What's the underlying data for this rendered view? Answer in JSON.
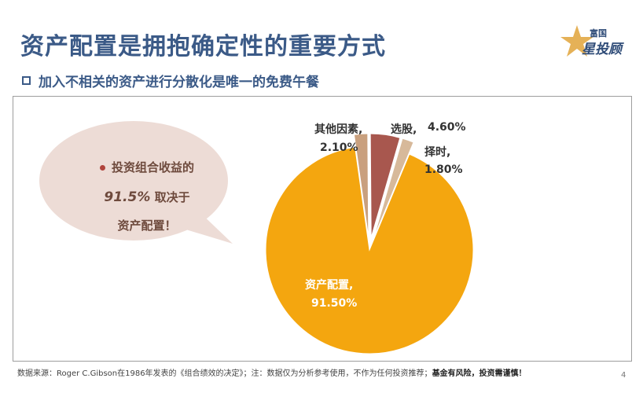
{
  "slide": {
    "title": "资产配置是拥抱确定性的重要方式",
    "subtitle": "加入不相关的资产进行分散化是唯一的免费午餐",
    "logo": {
      "top": "富国",
      "bottom": "星投顾"
    },
    "bubble": {
      "line1": "投资组合收益的",
      "number": "91.5%",
      "line2_rest": "取决于",
      "line3": "资产配置！"
    },
    "footnote": {
      "normal": "数据来源：Roger C.Gibson在1986年发表的《组合绩效的决定》；注：数据仅为分析参考使用，不作为任何投资推荐；",
      "bold": "基金有风险，投资需谨慎！"
    },
    "page_number": "4"
  },
  "chart_data": {
    "type": "pie",
    "title": "",
    "start_angle_deg": 0,
    "slices": [
      {
        "name": "其他因素,",
        "value": 2.1,
        "value_label": "2.10%",
        "color": "#c9a07e"
      },
      {
        "name": "选股,",
        "value": 4.6,
        "value_label": "4.60%",
        "color": "#a8574e"
      },
      {
        "name": "择时,",
        "value": 1.8,
        "value_label": "1.80%",
        "color": "#d7b99a"
      },
      {
        "name": "资产配置,",
        "value": 91.5,
        "value_label": "91.50%",
        "color": "#f4a60f"
      }
    ],
    "legend": "none"
  },
  "colors": {
    "title": "#3b5a87",
    "bubble_fill": "#eddcd6",
    "bubble_text": "#6e4a3d",
    "bubble_dot": "#b0443c"
  }
}
